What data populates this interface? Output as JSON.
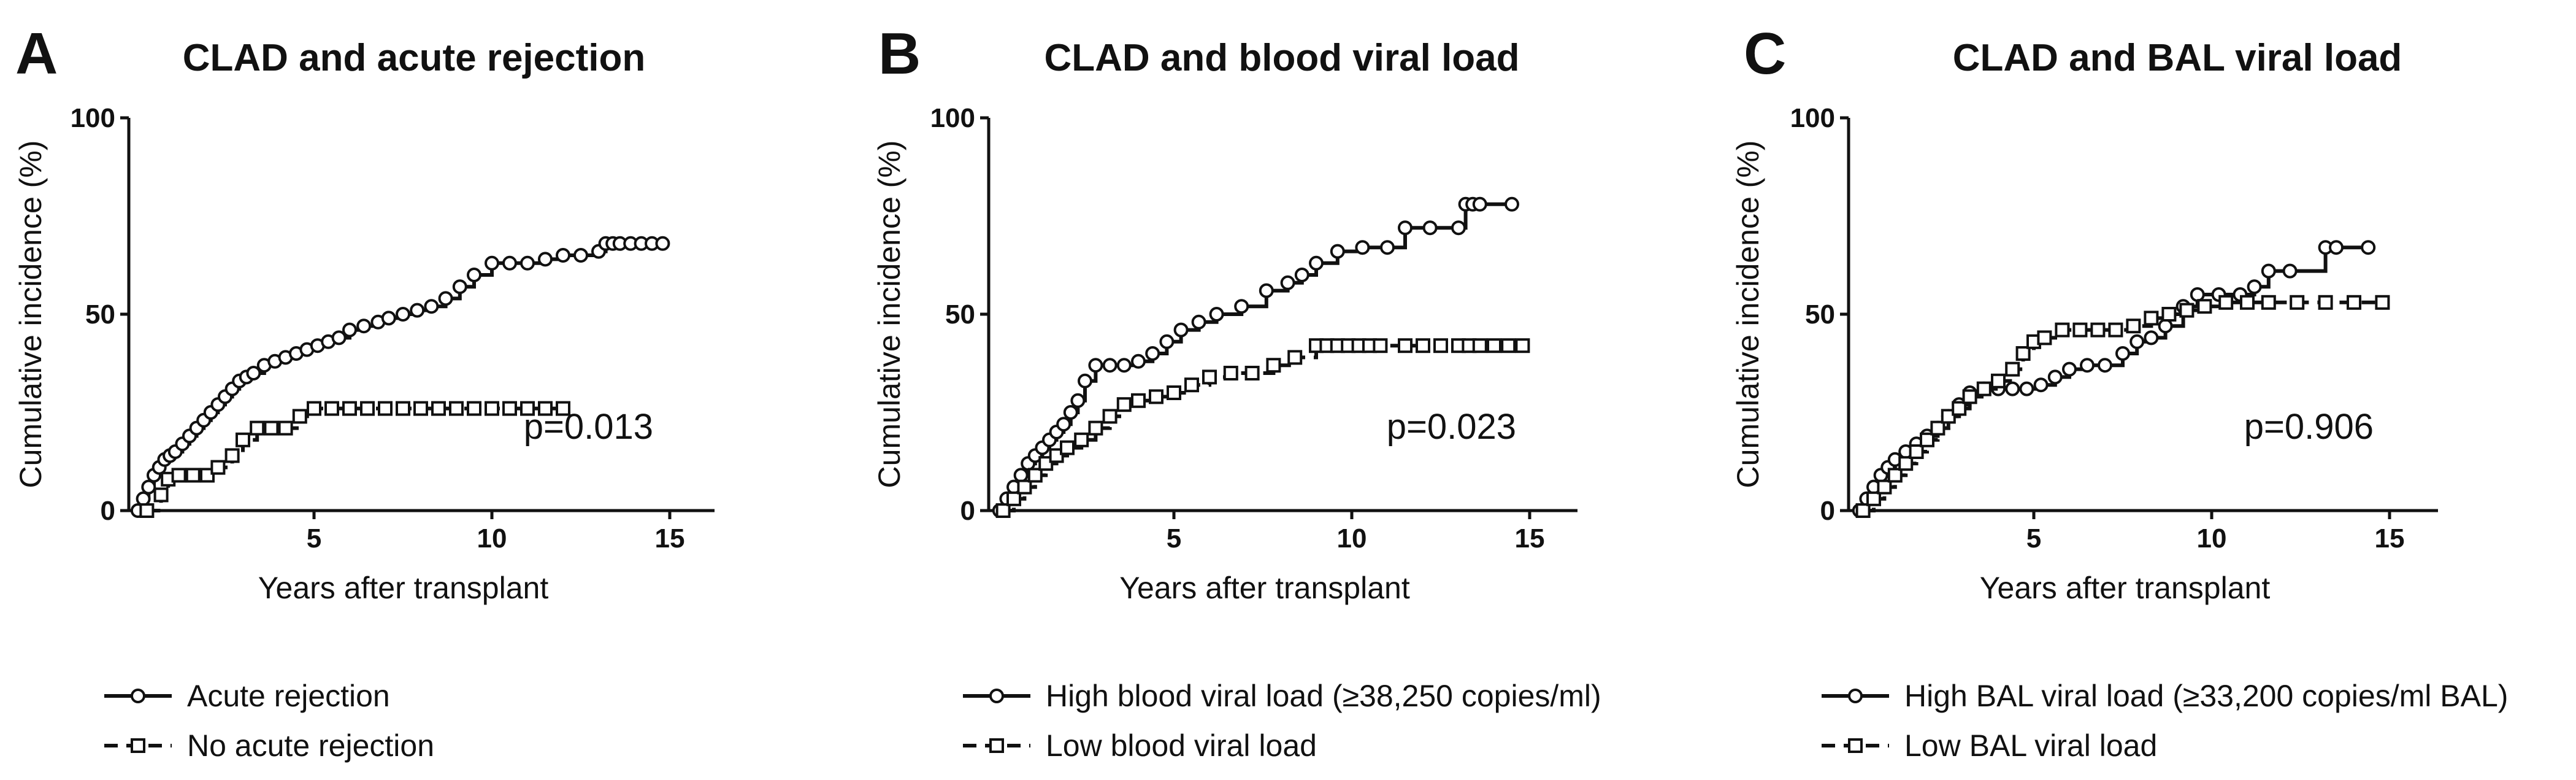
{
  "chart_data": [
    {
      "type": "line",
      "panel_letter": "A",
      "title": "CLAD and acute rejection",
      "xlabel": "Years after transplant",
      "ylabel": "Cumulative incidence (%)",
      "xlim": [
        0,
        16.5
      ],
      "ylim": [
        0,
        100
      ],
      "xticks": [
        5,
        10,
        15
      ],
      "yticks": [
        0,
        50,
        100
      ],
      "annotation": "p=0.013",
      "series": [
        {
          "name": "Acute rejection",
          "style": "solid",
          "marker": "circle",
          "x": [
            0.05,
            0.2,
            0.35,
            0.5,
            0.65,
            0.8,
            0.95,
            1.1,
            1.3,
            1.5,
            1.7,
            1.9,
            2.1,
            2.3,
            2.5,
            2.7,
            2.9,
            3.1,
            3.3,
            3.6,
            3.9,
            4.2,
            4.5,
            4.8,
            5.1,
            5.4,
            5.7,
            6.0,
            6.4,
            6.8,
            7.1,
            7.5,
            7.9,
            8.3,
            8.7,
            9.1,
            9.5,
            10.0,
            10.5,
            11.0,
            11.5,
            12.0,
            12.5,
            13.0,
            13.2,
            13.4,
            13.6,
            13.9,
            14.2,
            14.5,
            14.8
          ],
          "y": [
            0,
            3,
            6,
            9,
            11,
            13,
            14,
            15,
            17,
            19,
            21,
            23,
            25,
            27,
            29,
            31,
            33,
            34,
            35,
            37,
            38,
            39,
            40,
            41,
            42,
            43,
            44,
            46,
            47,
            48,
            49,
            50,
            51,
            52,
            54,
            57,
            60,
            63,
            63,
            63,
            64,
            65,
            65,
            66,
            68,
            68,
            68,
            68,
            68,
            68,
            68
          ]
        },
        {
          "name": "No acute rejection",
          "style": "dashed",
          "marker": "square",
          "x": [
            0.3,
            0.7,
            0.9,
            1.2,
            1.6,
            2.0,
            2.3,
            2.7,
            3.0,
            3.4,
            3.8,
            4.2,
            4.6,
            5.0,
            5.5,
            6.0,
            6.5,
            7.0,
            7.5,
            8.0,
            8.5,
            9.0,
            9.5,
            10.0,
            10.5,
            11.0,
            11.5,
            12.0
          ],
          "y": [
            0,
            4,
            8,
            9,
            9,
            9,
            11,
            14,
            18,
            21,
            21,
            21,
            24,
            26,
            26,
            26,
            26,
            26,
            26,
            26,
            26,
            26,
            26,
            26,
            26,
            26,
            26,
            26
          ]
        }
      ]
    },
    {
      "type": "line",
      "panel_letter": "B",
      "title": "CLAD and blood viral load",
      "xlabel": "Years after transplant",
      "ylabel": "Cumulative incidence (%)",
      "xlim": [
        0,
        16.5
      ],
      "ylim": [
        0,
        100
      ],
      "xticks": [
        5,
        10,
        15
      ],
      "yticks": [
        0,
        50,
        100
      ],
      "annotation": "p=0.023",
      "series": [
        {
          "name": "High blood viral load (≥38,250 copies/ml)",
          "style": "solid",
          "marker": "circle",
          "x": [
            0.1,
            0.3,
            0.5,
            0.7,
            0.9,
            1.1,
            1.3,
            1.5,
            1.7,
            1.9,
            2.1,
            2.3,
            2.5,
            2.8,
            3.2,
            3.6,
            4.0,
            4.4,
            4.8,
            5.2,
            5.7,
            6.2,
            6.9,
            7.6,
            8.2,
            8.6,
            9.0,
            9.6,
            10.3,
            11.0,
            11.5,
            12.2,
            13.0,
            13.2,
            13.4,
            13.6,
            14.5
          ],
          "y": [
            0,
            3,
            6,
            9,
            12,
            14,
            16,
            18,
            20,
            22,
            25,
            28,
            33,
            37,
            37,
            37,
            38,
            40,
            43,
            46,
            48,
            50,
            52,
            56,
            58,
            60,
            63,
            66,
            67,
            67,
            72,
            72,
            72,
            78,
            78,
            78,
            78
          ]
        },
        {
          "name": "Low blood viral load",
          "style": "dashed",
          "marker": "square",
          "x": [
            0.2,
            0.5,
            0.8,
            1.1,
            1.4,
            1.7,
            2.0,
            2.4,
            2.8,
            3.2,
            3.6,
            4.0,
            4.5,
            5.0,
            5.5,
            6.0,
            6.6,
            7.2,
            7.8,
            8.4,
            9.0,
            9.3,
            9.6,
            9.9,
            10.2,
            10.5,
            10.8,
            11.5,
            12.0,
            12.5,
            13.0,
            13.3,
            13.6,
            14.0,
            14.4,
            14.8
          ],
          "y": [
            0,
            3,
            6,
            9,
            12,
            14,
            16,
            18,
            21,
            24,
            27,
            28,
            29,
            30,
            32,
            34,
            35,
            35,
            37,
            39,
            42,
            42,
            42,
            42,
            42,
            42,
            42,
            42,
            42,
            42,
            42,
            42,
            42,
            42,
            42,
            42
          ]
        }
      ]
    },
    {
      "type": "line",
      "panel_letter": "C",
      "title": "CLAD and BAL viral load",
      "xlabel": "Years after transplant",
      "ylabel": "Cumulative incidence (%)",
      "xlim": [
        0,
        16.5
      ],
      "ylim": [
        0,
        100
      ],
      "xticks": [
        5,
        10,
        15
      ],
      "yticks": [
        0,
        50,
        100
      ],
      "annotation": "p=0.906",
      "series": [
        {
          "name": "High BAL viral load (≥33,200 copies/ml  BAL)",
          "style": "solid",
          "marker": "circle",
          "x": [
            0.1,
            0.3,
            0.5,
            0.7,
            0.9,
            1.1,
            1.4,
            1.7,
            2.0,
            2.3,
            2.6,
            2.9,
            3.2,
            3.6,
            4.0,
            4.4,
            4.8,
            5.2,
            5.6,
            6.0,
            6.5,
            7.0,
            7.5,
            7.9,
            8.3,
            8.7,
            9.2,
            9.6,
            10.2,
            10.8,
            11.2,
            11.6,
            12.2,
            13.2,
            13.5,
            14.4
          ],
          "y": [
            0,
            3,
            6,
            9,
            11,
            13,
            15,
            17,
            19,
            21,
            24,
            27,
            30,
            31,
            31,
            31,
            31,
            32,
            34,
            36,
            37,
            37,
            40,
            43,
            44,
            47,
            52,
            55,
            55,
            55,
            57,
            61,
            61,
            67,
            67,
            67
          ]
        },
        {
          "name": "Low BAL viral load",
          "style": "dashed",
          "marker": "square",
          "x": [
            0.2,
            0.5,
            0.8,
            1.1,
            1.4,
            1.7,
            2.0,
            2.3,
            2.6,
            2.9,
            3.2,
            3.6,
            4.0,
            4.4,
            4.7,
            5.0,
            5.3,
            5.8,
            6.3,
            6.8,
            7.3,
            7.8,
            8.3,
            8.8,
            9.3,
            9.8,
            10.4,
            11.0,
            11.6,
            12.4,
            13.2,
            14.0,
            14.8
          ],
          "y": [
            0,
            3,
            6,
            9,
            12,
            15,
            18,
            21,
            24,
            26,
            29,
            31,
            33,
            36,
            40,
            43,
            44,
            46,
            46,
            46,
            46,
            47,
            49,
            50,
            51,
            52,
            53,
            53,
            53,
            53,
            53,
            53,
            53
          ]
        }
      ]
    }
  ]
}
